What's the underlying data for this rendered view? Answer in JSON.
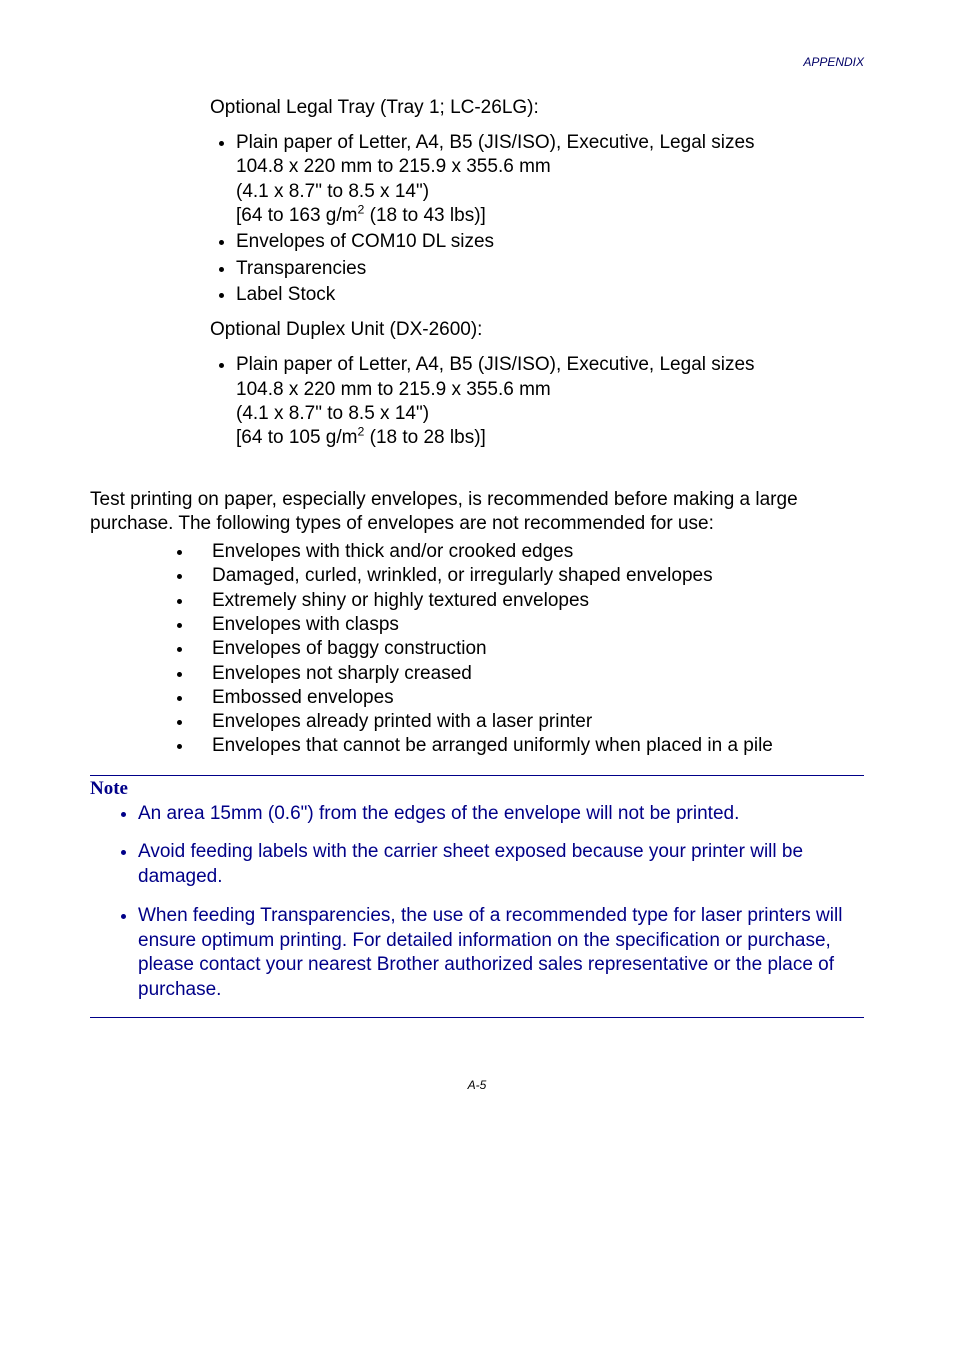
{
  "header": {
    "text": "APPENDIX"
  },
  "section1": {
    "title": " Optional Legal Tray (Tray 1; LC-26LG):",
    "items": [
      {
        "line": "Plain paper of Letter, A4, B5 (JIS/ISO), Executive, Legal sizes",
        "sub1": "104.8 x 220 mm to 215.9 x 355.6 mm",
        "sub2": "(4.1 x 8.7\" to 8.5 x 14\")",
        "sub3_pre": "[64 to 163 g/m",
        "sub3_sup": "2",
        "sub3_post": " (18 to 43 lbs)]"
      },
      {
        "line": "Envelopes of COM10 DL sizes"
      },
      {
        "line": "Transparencies"
      },
      {
        "line": "Label Stock"
      }
    ]
  },
  "section2": {
    "title": " Optional Duplex Unit (DX-2600):",
    "item": {
      "line": "Plain paper of Letter, A4, B5 (JIS/ISO), Executive, Legal sizes",
      "sub1": "104.8 x 220 mm to 215.9 x 355.6 mm",
      "sub2": "(4.1 x 8.7\" to 8.5 x 14\")",
      "sub3_pre": "[64 to 105 g/m",
      "sub3_sup": "2",
      "sub3_post": " (18 to 28 lbs)]"
    }
  },
  "paragraph": "Test printing on paper, especially envelopes, is recommended before making a large purchase. The following types of envelopes are not recommended for use:",
  "envelope_list": [
    "Envelopes with thick and/or crooked edges",
    "Damaged, curled, wrinkled, or irregularly shaped envelopes",
    "Extremely shiny or highly textured envelopes",
    "Envelopes with clasps",
    "Envelopes of baggy construction",
    "Envelopes not sharply creased",
    "Embossed envelopes",
    "Envelopes already printed with a laser printer",
    "Envelopes that cannot be arranged uniformly when placed in a pile"
  ],
  "note": {
    "title": "Note",
    "items": [
      "An area 15mm (0.6\") from the edges of the envelope will not be printed.",
      "Avoid feeding labels with the carrier sheet exposed because your printer will be damaged.",
      "When feeding Transparencies, the use of a recommended type for laser printers will ensure optimum printing. For detailed information on the specification or purchase, please contact your nearest Brother authorized sales representative or the place of purchase."
    ]
  },
  "footer": {
    "text": "A-5"
  }
}
